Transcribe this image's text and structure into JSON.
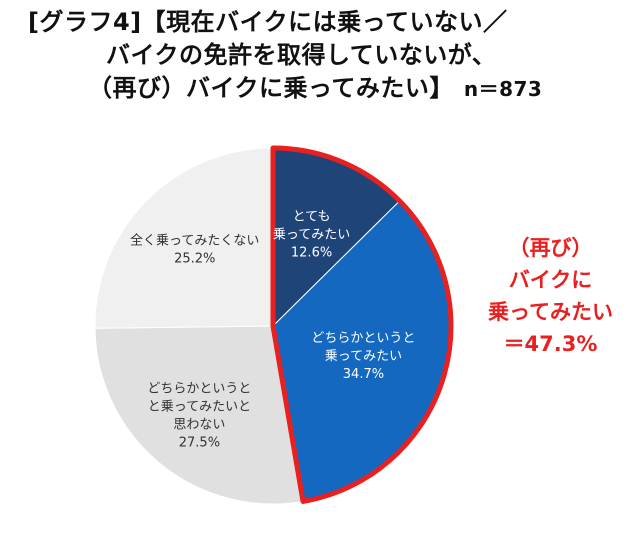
{
  "title": {
    "line1": "[グラフ4]【現在バイクには乗っていない／",
    "line2": "バイクの免許を取得していないが、",
    "line3": "（再び）バイクに乗ってみたい】",
    "n_label": "n＝873"
  },
  "callout": {
    "line1": "（再び）",
    "line2": "バイクに",
    "line3": "乗ってみたい",
    "line4": "＝47.3%"
  },
  "colors": {
    "highlight_border": "#e8201f",
    "dark_navy": "#1f4478",
    "blue": "#1468c0",
    "light_gray": "#e0e0e0",
    "lighter_gray": "#f0f0f0"
  },
  "chart_data": {
    "type": "pie",
    "title": "[グラフ4]【現在バイクには乗っていない／バイクの免許を取得していないが、（再び）バイクに乗ってみたい】 n＝873",
    "start_angle_deg": 0,
    "direction": "clockwise",
    "slices": [
      {
        "name": "slice-very-want",
        "lines": [
          "とても",
          "乗ってみたい"
        ],
        "value": 12.6,
        "value_label": "12.6%",
        "color": "#1f4478",
        "text": "light"
      },
      {
        "name": "slice-somewhat-want",
        "lines": [
          "どちらかというと",
          "乗ってみたい"
        ],
        "value": 34.7,
        "value_label": "34.7%",
        "color": "#1468c0",
        "text": "light"
      },
      {
        "name": "slice-somewhat-not",
        "lines": [
          "どちらかというと",
          "と乗ってみたいと",
          "思わない"
        ],
        "value": 27.5,
        "value_label": "27.5%",
        "color": "#e0e0e0",
        "text": "dark"
      },
      {
        "name": "slice-not-at-all",
        "lines": [
          "全く乗ってみたくない"
        ],
        "value": 25.2,
        "value_label": "25.2%",
        "color": "#f0f0f0",
        "text": "dark"
      }
    ],
    "highlight": {
      "slices": [
        "slice-very-want",
        "slice-somewhat-want"
      ],
      "total_label": "47.3%"
    }
  }
}
